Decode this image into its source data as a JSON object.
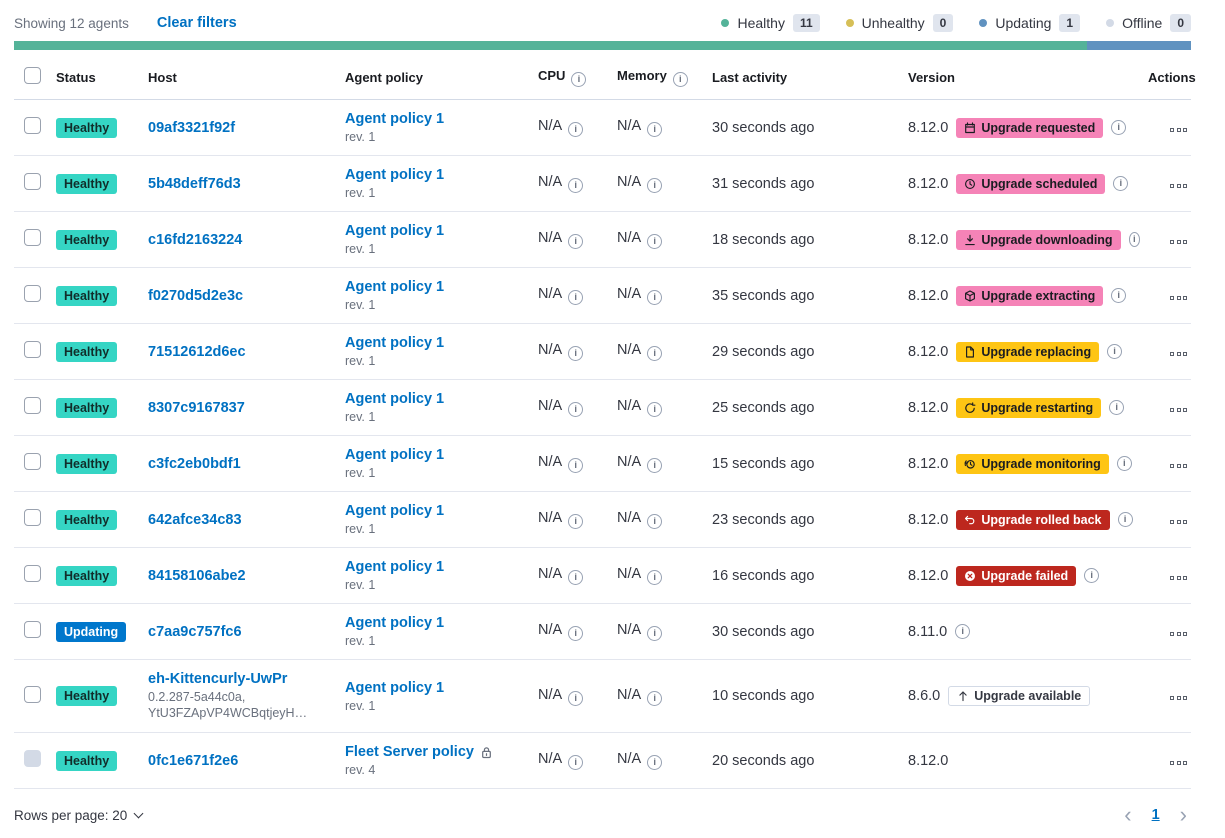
{
  "colors": {
    "link": "#0071c2",
    "healthy_badge": "#35d5c4",
    "updating_badge": "#0077cc",
    "pink_badge": "#f583b7",
    "warning_badge": "#fec514",
    "danger_badge": "#bd271e",
    "hollow_badge_border": "#d3dae6",
    "bar_green": "#54b399",
    "bar_blue": "#6092c0"
  },
  "header": {
    "showing": "Showing 12 agents",
    "clear_filters": "Clear filters",
    "legend": [
      {
        "label": "Healthy",
        "count": "11",
        "color": "#54b399"
      },
      {
        "label": "Unhealthy",
        "count": "0",
        "color": "#d6bf57"
      },
      {
        "label": "Updating",
        "count": "1",
        "color": "#6092c0"
      },
      {
        "label": "Offline",
        "count": "0",
        "color": "#d3dae6"
      }
    ],
    "status_bar": [
      {
        "status": "healthy",
        "color": "#54b399",
        "fraction": 0.912
      },
      {
        "status": "updating",
        "color": "#6092c0",
        "fraction": 0.088
      }
    ]
  },
  "table": {
    "columns": [
      "Status",
      "Host",
      "Agent policy",
      "CPU",
      "Memory",
      "Last activity",
      "Version",
      "Actions"
    ],
    "rows": [
      {
        "status": {
          "label": "Healthy",
          "variant": "healthy"
        },
        "host": "09af3321f92f",
        "host_sub": [],
        "policy": {
          "name": "Agent policy 1",
          "rev": "rev. 1",
          "locked": false
        },
        "cpu": "N/A",
        "memory": "N/A",
        "last_activity": "30 seconds ago",
        "version": "8.12.0",
        "upgrade": {
          "label": "Upgrade requested",
          "variant": "pink",
          "icon": "calendar-icon"
        },
        "version_info": true,
        "checkbox_disabled": false
      },
      {
        "status": {
          "label": "Healthy",
          "variant": "healthy"
        },
        "host": "5b48deff76d3",
        "host_sub": [],
        "policy": {
          "name": "Agent policy 1",
          "rev": "rev. 1",
          "locked": false
        },
        "cpu": "N/A",
        "memory": "N/A",
        "last_activity": "31 seconds ago",
        "version": "8.12.0",
        "upgrade": {
          "label": "Upgrade scheduled",
          "variant": "pink",
          "icon": "clock-icon"
        },
        "version_info": true,
        "checkbox_disabled": false
      },
      {
        "status": {
          "label": "Healthy",
          "variant": "healthy"
        },
        "host": "c16fd2163224",
        "host_sub": [],
        "policy": {
          "name": "Agent policy 1",
          "rev": "rev. 1",
          "locked": false
        },
        "cpu": "N/A",
        "memory": "N/A",
        "last_activity": "18 seconds ago",
        "version": "8.12.0",
        "upgrade": {
          "label": "Upgrade downloading",
          "variant": "pink",
          "icon": "download-icon"
        },
        "version_info": true,
        "checkbox_disabled": false
      },
      {
        "status": {
          "label": "Healthy",
          "variant": "healthy"
        },
        "host": "f0270d5d2e3c",
        "host_sub": [],
        "policy": {
          "name": "Agent policy 1",
          "rev": "rev. 1",
          "locked": false
        },
        "cpu": "N/A",
        "memory": "N/A",
        "last_activity": "35 seconds ago",
        "version": "8.12.0",
        "upgrade": {
          "label": "Upgrade extracting",
          "variant": "pink",
          "icon": "package-icon"
        },
        "version_info": true,
        "checkbox_disabled": false
      },
      {
        "status": {
          "label": "Healthy",
          "variant": "healthy"
        },
        "host": "71512612d6ec",
        "host_sub": [],
        "policy": {
          "name": "Agent policy 1",
          "rev": "rev. 1",
          "locked": false
        },
        "cpu": "N/A",
        "memory": "N/A",
        "last_activity": "29 seconds ago",
        "version": "8.12.0",
        "upgrade": {
          "label": "Upgrade replacing",
          "variant": "warning",
          "icon": "document-icon"
        },
        "version_info": true,
        "checkbox_disabled": false
      },
      {
        "status": {
          "label": "Healthy",
          "variant": "healthy"
        },
        "host": "8307c9167837",
        "host_sub": [],
        "policy": {
          "name": "Agent policy 1",
          "rev": "rev. 1",
          "locked": false
        },
        "cpu": "N/A",
        "memory": "N/A",
        "last_activity": "25 seconds ago",
        "version": "8.12.0",
        "upgrade": {
          "label": "Upgrade restarting",
          "variant": "warning",
          "icon": "refresh-icon"
        },
        "version_info": true,
        "checkbox_disabled": false
      },
      {
        "status": {
          "label": "Healthy",
          "variant": "healthy"
        },
        "host": "c3fc2eb0bdf1",
        "host_sub": [],
        "policy": {
          "name": "Agent policy 1",
          "rev": "rev. 1",
          "locked": false
        },
        "cpu": "N/A",
        "memory": "N/A",
        "last_activity": "15 seconds ago",
        "version": "8.12.0",
        "upgrade": {
          "label": "Upgrade monitoring",
          "variant": "warning",
          "icon": "monitoring-icon"
        },
        "version_info": true,
        "checkbox_disabled": false
      },
      {
        "status": {
          "label": "Healthy",
          "variant": "healthy"
        },
        "host": "642afce34c83",
        "host_sub": [],
        "policy": {
          "name": "Agent policy 1",
          "rev": "rev. 1",
          "locked": false
        },
        "cpu": "N/A",
        "memory": "N/A",
        "last_activity": "23 seconds ago",
        "version": "8.12.0",
        "upgrade": {
          "label": "Upgrade rolled back",
          "variant": "danger",
          "icon": "rollback-icon"
        },
        "version_info": true,
        "checkbox_disabled": false
      },
      {
        "status": {
          "label": "Healthy",
          "variant": "healthy"
        },
        "host": "84158106abe2",
        "host_sub": [],
        "policy": {
          "name": "Agent policy 1",
          "rev": "rev. 1",
          "locked": false
        },
        "cpu": "N/A",
        "memory": "N/A",
        "last_activity": "16 seconds ago",
        "version": "8.12.0",
        "upgrade": {
          "label": "Upgrade failed",
          "variant": "danger",
          "icon": "error-icon"
        },
        "version_info": true,
        "checkbox_disabled": false
      },
      {
        "status": {
          "label": "Updating",
          "variant": "updating"
        },
        "host": "c7aa9c757fc6",
        "host_sub": [],
        "policy": {
          "name": "Agent policy 1",
          "rev": "rev. 1",
          "locked": false
        },
        "cpu": "N/A",
        "memory": "N/A",
        "last_activity": "30 seconds ago",
        "version": "8.11.0",
        "upgrade": null,
        "version_info": true,
        "checkbox_disabled": false
      },
      {
        "status": {
          "label": "Healthy",
          "variant": "healthy"
        },
        "host": "eh-Kittencurly-UwPr",
        "host_sub": [
          "0.2.287-5a44c0a,",
          "YtU3FZApVP4WCBqtjeyH…"
        ],
        "policy": {
          "name": "Agent policy 1",
          "rev": "rev. 1",
          "locked": false
        },
        "cpu": "N/A",
        "memory": "N/A",
        "last_activity": "10 seconds ago",
        "version": "8.6.0",
        "upgrade": {
          "label": "Upgrade available",
          "variant": "hollow",
          "icon": "up-arrow-icon"
        },
        "version_info": false,
        "checkbox_disabled": false
      },
      {
        "status": {
          "label": "Healthy",
          "variant": "healthy"
        },
        "host": "0fc1e671f2e6",
        "host_sub": [],
        "policy": {
          "name": "Fleet Server policy",
          "rev": "rev. 4",
          "locked": true
        },
        "cpu": "N/A",
        "memory": "N/A",
        "last_activity": "20 seconds ago",
        "version": "8.12.0",
        "upgrade": null,
        "version_info": false,
        "checkbox_disabled": true
      }
    ]
  },
  "footer": {
    "rows_per_page_label": "Rows per page: 20",
    "page": "1"
  }
}
